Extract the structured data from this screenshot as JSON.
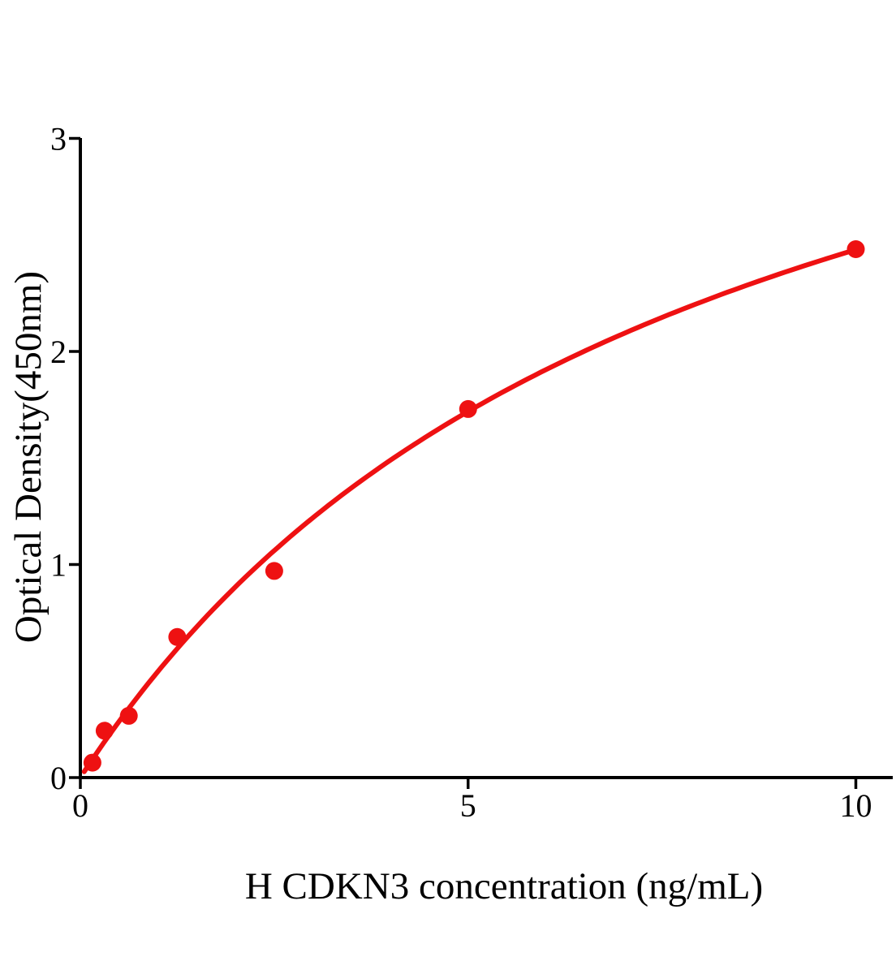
{
  "figure": {
    "background": "#ffffff"
  },
  "chart_data": {
    "type": "scatter",
    "title": "",
    "xlabel": "H CDKN3 concentration (ng/mL)",
    "ylabel": "Optical Density(450nm)",
    "xlim": [
      0,
      10.48
    ],
    "ylim": [
      0,
      3
    ],
    "x_ticks": [
      "0",
      "5",
      "10"
    ],
    "x_tick_values": [
      0,
      5,
      10
    ],
    "y_ticks": [
      "0",
      "1",
      "2",
      "3"
    ],
    "y_tick_values": [
      0,
      1,
      2,
      3
    ],
    "grid": false,
    "legend": null,
    "axis_color": "#000000",
    "accent_color": "#ee1112",
    "series": [
      {
        "name": "standard points",
        "type": "scatter",
        "color": "#ee1112",
        "points": [
          {
            "x": 0.156,
            "y": 0.07
          },
          {
            "x": 0.313,
            "y": 0.22
          },
          {
            "x": 0.625,
            "y": 0.29
          },
          {
            "x": 1.25,
            "y": 0.66
          },
          {
            "x": 2.5,
            "y": 0.97
          },
          {
            "x": 5,
            "y": 1.73
          },
          {
            "x": 10,
            "y": 2.48
          }
        ]
      },
      {
        "name": "fitted standard curve",
        "type": "line",
        "color": "#ee1112",
        "fit": {
          "model": "y = a*x/(b+x)",
          "a": 4.44,
          "b": 7.92,
          "x_start": 0.05,
          "x_end": 10
        }
      }
    ]
  }
}
